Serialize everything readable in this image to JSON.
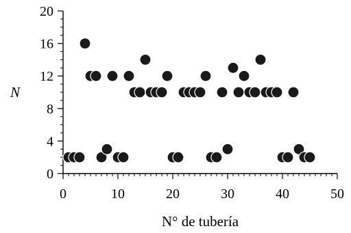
{
  "chart_data": {
    "type": "scatter",
    "xlabel": "N° de tubería",
    "ylabel": "N",
    "xlim": [
      0,
      50
    ],
    "ylim": [
      0,
      20
    ],
    "xticks": [
      0,
      10,
      20,
      30,
      40,
      50
    ],
    "yticks": [
      0,
      4,
      8,
      12,
      16,
      20
    ],
    "x_minor_step": 1,
    "y_minor_step": 1,
    "grid": false,
    "marker_color": "#1a1a1a",
    "series": [
      {
        "x": [
          1,
          2,
          3,
          4,
          5,
          6,
          7,
          8,
          9,
          10,
          11,
          12,
          13,
          14,
          15,
          16,
          17,
          18,
          19,
          20,
          21,
          22,
          23,
          24,
          25,
          26,
          27,
          28,
          29,
          30,
          31,
          32,
          33,
          34,
          35,
          36,
          37,
          38,
          39,
          40,
          41,
          42,
          43,
          44,
          45
        ],
        "y": [
          2,
          2,
          2,
          16,
          12,
          12,
          2,
          3,
          12,
          2,
          2,
          12,
          10,
          10,
          14,
          10,
          10,
          10,
          12,
          2,
          2,
          10,
          10,
          10,
          10,
          12,
          2,
          2,
          10,
          3,
          13,
          10,
          12,
          10,
          10,
          14,
          10,
          10,
          10,
          2,
          2,
          10,
          3,
          2,
          2
        ]
      }
    ]
  }
}
